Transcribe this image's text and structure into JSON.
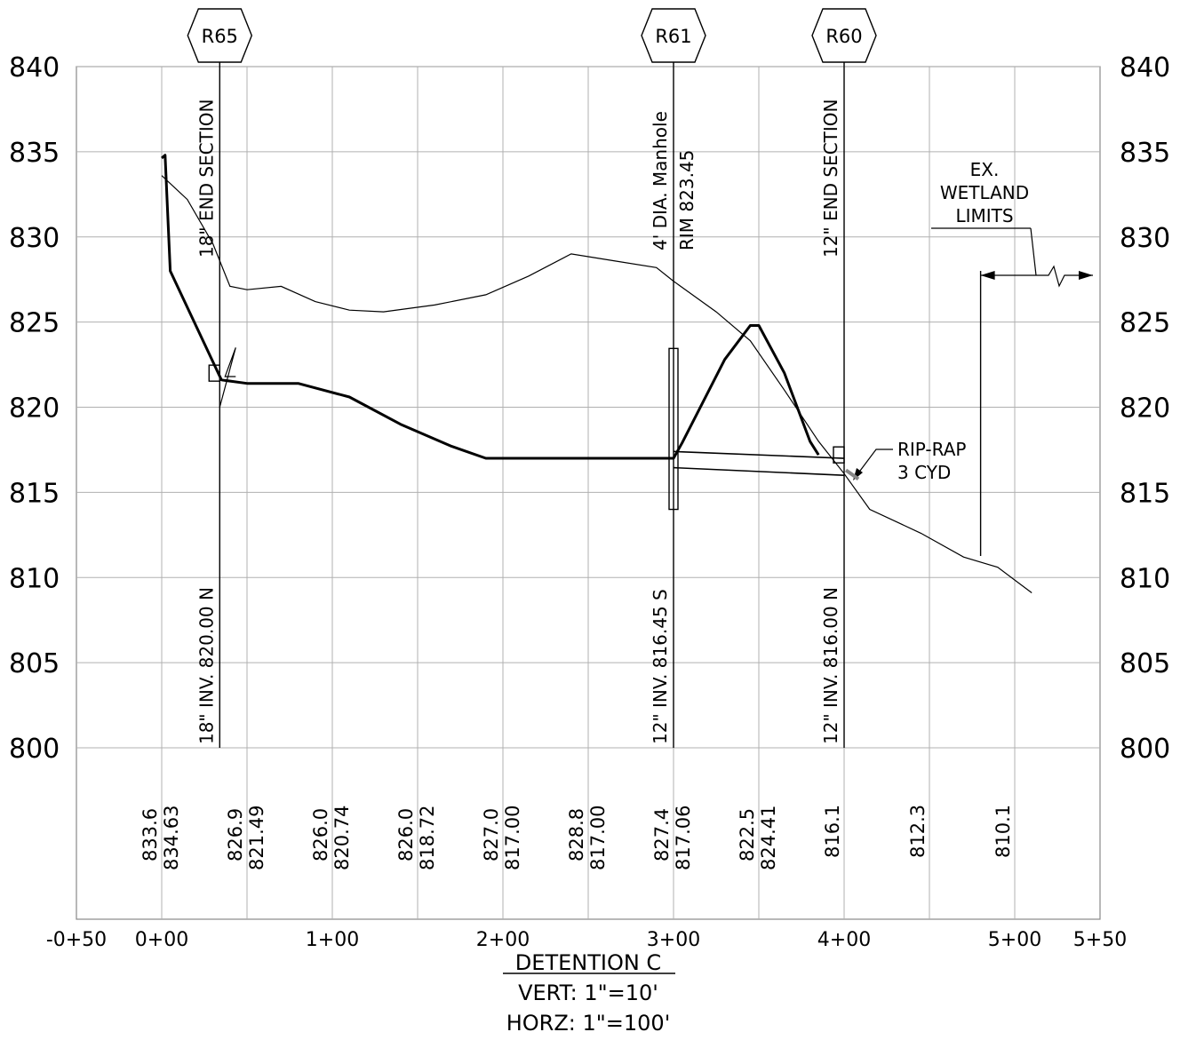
{
  "drawing": {
    "title": "DETENTION C",
    "vertical_scale": "VERT: 1\"=10'",
    "horizontal_scale": "HORZ: 1\"=100'"
  },
  "chart_data": {
    "type": "line",
    "title": "DETENTION C",
    "x_axis": {
      "ticks": [
        -50,
        0,
        100,
        200,
        300,
        400,
        500,
        550
      ],
      "tick_labels": [
        "-0+50",
        "0+00",
        "1+00",
        "2+00",
        "3+00",
        "4+00",
        "5+00",
        "5+50"
      ],
      "grid_every": 50,
      "range": [
        -50,
        550
      ]
    },
    "y_axis": {
      "ticks": [
        800,
        805,
        810,
        815,
        820,
        825,
        830,
        835,
        840
      ],
      "tick_labels": [
        "800",
        "805",
        "810",
        "815",
        "820",
        "825",
        "830",
        "835",
        "840"
      ],
      "range": [
        800,
        840
      ],
      "labels_both_sides": true
    },
    "grid": true,
    "series": [
      {
        "role": "existing ground",
        "style": "thin line, dashed where broken",
        "x": [
          0,
          15,
          30,
          40,
          50,
          70,
          90,
          110,
          130,
          160,
          190,
          215,
          240,
          265,
          290,
          300,
          325,
          345,
          365,
          385,
          400,
          415,
          445,
          470,
          490,
          510
        ],
        "y": [
          833.6,
          832.2,
          829.6,
          827.1,
          826.9,
          827.1,
          826.2,
          825.7,
          825.6,
          826.0,
          826.6,
          827.7,
          829.0,
          828.6,
          828.2,
          827.4,
          825.6,
          823.9,
          821.0,
          818.0,
          816.1,
          814.0,
          812.6,
          811.2,
          810.6,
          809.1
        ]
      },
      {
        "role": "proposed grade",
        "style": "heavy line",
        "x": [
          0,
          2,
          5,
          35,
          50,
          80,
          110,
          140,
          170,
          190,
          300,
          305,
          330,
          345,
          350,
          365,
          380,
          385
        ],
        "y": [
          834.63,
          834.8,
          828.0,
          821.6,
          821.4,
          821.4,
          820.6,
          819.0,
          817.7,
          817.0,
          817.0,
          817.9,
          822.8,
          824.8,
          824.8,
          822.0,
          818.0,
          817.2
        ]
      },
      {
        "role": "12 in pipe R61 to R60",
        "style": "double thin line",
        "x": [
          300,
          400
        ],
        "y_top": [
          817.4,
          817.0
        ],
        "y_bottom": [
          816.45,
          816.0
        ]
      }
    ],
    "structures": [
      {
        "tag": "R65",
        "station": 34,
        "upper_label": "18\" END SECTION",
        "lower_label": "18\" INV. 820.00 N",
        "invert": 820.0
      },
      {
        "tag": "R61",
        "station": 300,
        "upper_label_1": "4' DIA. Manhole",
        "upper_label_2": "RIM 823.45",
        "lower_label": "12\" INV. 816.45 S",
        "rim": 823.45,
        "invert": 816.45
      },
      {
        "tag": "R60",
        "station": 400,
        "upper_label": "12\" END SECTION",
        "lower_label": "12\" INV. 816.00 N",
        "invert": 816.0
      }
    ],
    "annotations": [
      {
        "text_lines": [
          "EX.",
          "WETLAND",
          "LIMITS"
        ],
        "station": 480
      },
      {
        "text_lines": [
          "RIP-RAP",
          "3 CYD"
        ],
        "station": 400
      }
    ],
    "elevation_table": [
      {
        "station": 0,
        "existing": "833.6",
        "proposed": "834.63"
      },
      {
        "station": 50,
        "existing": "826.9",
        "proposed": "821.49"
      },
      {
        "station": 100,
        "existing": "826.0",
        "proposed": "820.74"
      },
      {
        "station": 150,
        "existing": "826.0",
        "proposed": "818.72"
      },
      {
        "station": 200,
        "existing": "827.0",
        "proposed": "817.00"
      },
      {
        "station": 250,
        "existing": "828.8",
        "proposed": "817.00"
      },
      {
        "station": 300,
        "existing": "827.4",
        "proposed": "817.06"
      },
      {
        "station": 350,
        "existing": "822.5",
        "proposed": "824.41"
      },
      {
        "station": 400,
        "existing": "816.1",
        "proposed": ""
      },
      {
        "station": 450,
        "existing": "812.3",
        "proposed": ""
      },
      {
        "station": 500,
        "existing": "810.1",
        "proposed": ""
      }
    ]
  }
}
